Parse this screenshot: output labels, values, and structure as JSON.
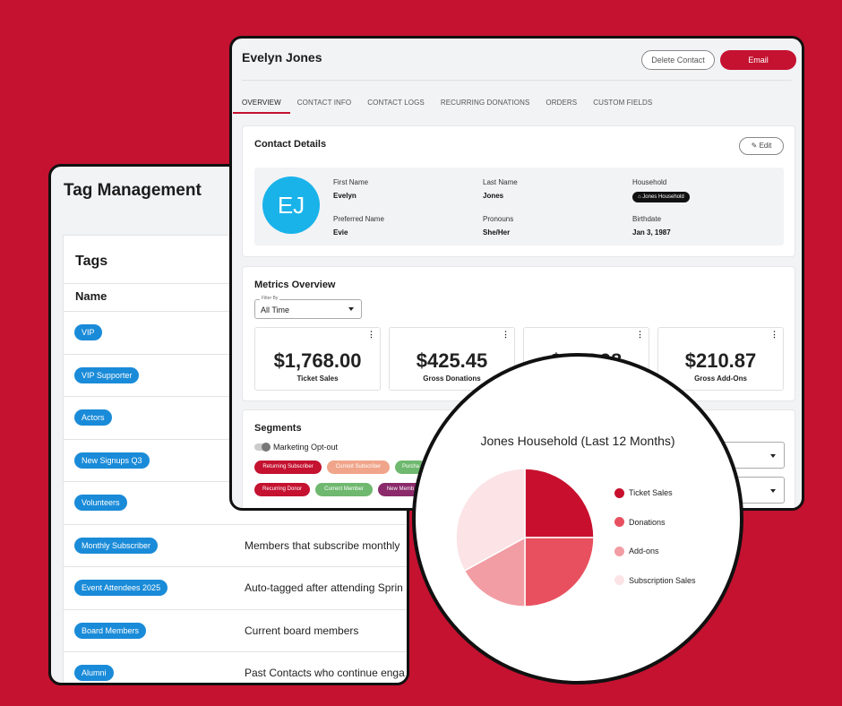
{
  "tag_management": {
    "title": "Tag Management",
    "section_title": "Tags",
    "col_name": "Name",
    "rows": [
      {
        "tag": "VIP",
        "desc": ""
      },
      {
        "tag": "VIP Supporter",
        "desc": ""
      },
      {
        "tag": "Actors",
        "desc": ""
      },
      {
        "tag": "New Signups Q3",
        "desc": ""
      },
      {
        "tag": "Volunteers",
        "desc": ""
      },
      {
        "tag": "Monthly Subscriber",
        "desc": "Members that subscribe monthly"
      },
      {
        "tag": "Event Attendees 2025",
        "desc": "Auto-tagged after attending Sprin"
      },
      {
        "tag": "Board Members",
        "desc": "Current board members"
      },
      {
        "tag": "Alumni",
        "desc": "Past Contacts who continue enga"
      }
    ]
  },
  "contact": {
    "name": "Evelyn Jones",
    "delete_label": "Delete Contact",
    "email_label": "Email",
    "tabs": [
      "OVERVIEW",
      "CONTACT INFO",
      "CONTACT LOGS",
      "RECURRING DONATIONS",
      "ORDERS",
      "CUSTOM FIELDS"
    ],
    "details": {
      "title": "Contact Details",
      "edit_label": "Edit",
      "initials": "EJ",
      "first_name_label": "First Name",
      "first_name": "Evelyn",
      "last_name_label": "Last Name",
      "last_name": "Jones",
      "household_label": "Household",
      "household": "Jones Household",
      "preferred_label": "Preferred Name",
      "preferred": "Evie",
      "pronouns_label": "Pronouns",
      "pronouns": "She/Her",
      "birthdate_label": "Birthdate",
      "birthdate": "Jan 3, 1987"
    },
    "metrics": {
      "title": "Metrics Overview",
      "filter_label": "Filter By",
      "filter_value": "All Time",
      "cards": [
        {
          "value": "$1,768.00",
          "label": "Ticket Sales"
        },
        {
          "value": "$425.45",
          "label": "Gross Donations"
        },
        {
          "value": "$845.98",
          "label": ""
        },
        {
          "value": "$210.87",
          "label": "Gross Add-Ons"
        }
      ]
    },
    "segments": {
      "title": "Segments",
      "toggle_label": "Marketing Opt-out",
      "pills": [
        {
          "label": "Returning Subscriber",
          "color": "#c41230"
        },
        {
          "label": "Current Subscriber",
          "color": "#f0a58a"
        },
        {
          "label": "Purcha",
          "color": "#6fb86f"
        },
        {
          "label": "Recurring Donor",
          "color": "#c41230"
        },
        {
          "label": "Current Member",
          "color": "#6fb86f"
        },
        {
          "label": "New Memb",
          "color": "#8a2a6a"
        }
      ]
    }
  },
  "chart_data": {
    "type": "pie",
    "title": "Jones Household (Last 12 Months)",
    "categories": [
      "Ticket Sales",
      "Donations",
      "Add-ons",
      "Subscription Sales"
    ],
    "values": [
      25,
      25,
      17,
      33
    ],
    "colors": [
      "#c8102e",
      "#e8505f",
      "#f29ca4",
      "#fbe3e6"
    ],
    "legend_position": "right"
  }
}
